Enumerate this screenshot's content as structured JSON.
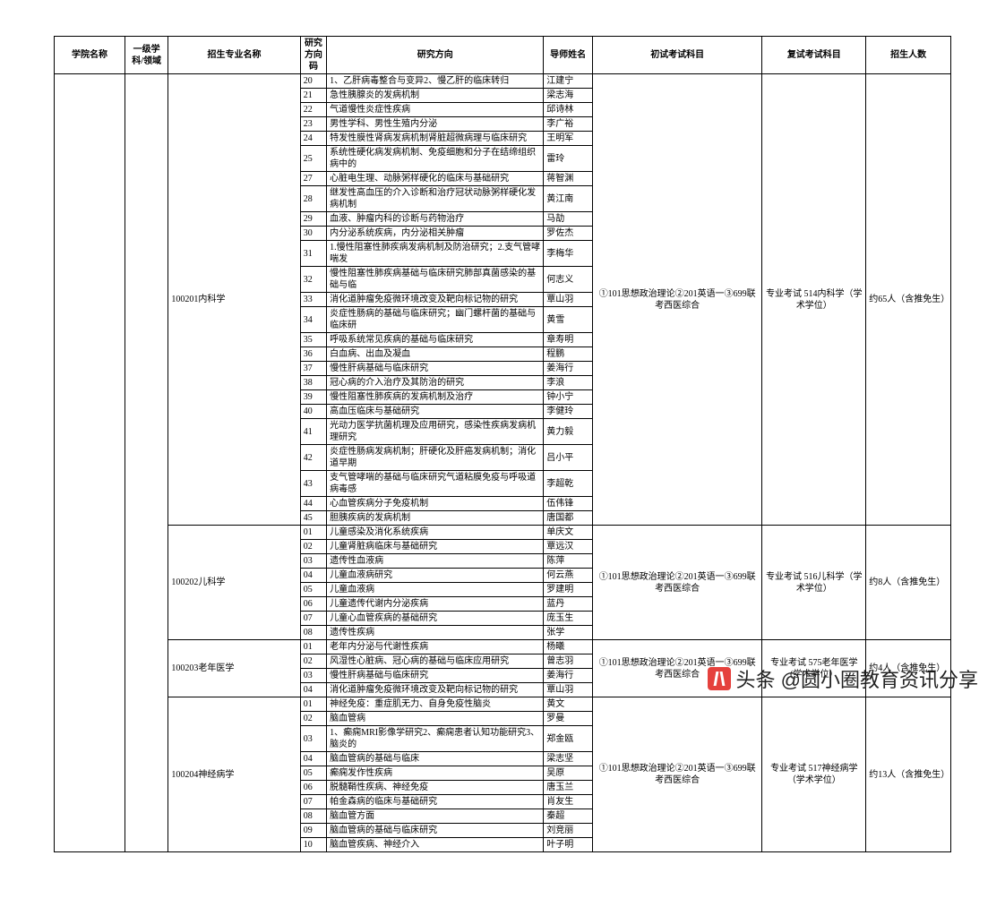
{
  "headers": {
    "college": "学院名称",
    "discipline": "一级学科/领域",
    "major": "招生专业名称",
    "code": "研究方向码",
    "direction": "研究方向",
    "tutor": "导师姓名",
    "prelim": "初试考试科目",
    "retest": "复试考试科目",
    "quota": "招生人数"
  },
  "majors": [
    {
      "name": "100201内科学",
      "prelim": "①101思想政治理论②201英语一③699联考西医综合",
      "retest": "专业考试 514内科学（学术学位）",
      "quota": "约65人（含推免生）",
      "rows": [
        {
          "code": "20",
          "direction": "1、乙肝病毒整合与变异2、慢乙肝的临床转归",
          "tutor": "江建宁"
        },
        {
          "code": "21",
          "direction": "急性胰腺炎的发病机制",
          "tutor": "梁志海"
        },
        {
          "code": "22",
          "direction": "气道慢性炎症性疾病",
          "tutor": "邱诗林"
        },
        {
          "code": "23",
          "direction": "男性学科、男性生殖内分泌",
          "tutor": "李广裕"
        },
        {
          "code": "24",
          "direction": "特发性膜性肾病发病机制肾脏超微病理与临床研究",
          "tutor": "王明军"
        },
        {
          "code": "25",
          "direction": "系统性硬化病发病机制、免疫细胞和分子在结缔组织病中的",
          "tutor": "雷玲"
        },
        {
          "code": "27",
          "direction": "心脏电生理、动脉粥样硬化的临床与基础研究",
          "tutor": "蒋智渊"
        },
        {
          "code": "28",
          "direction": "继发性高血压的介入诊断和治疗冠状动脉粥样硬化发病机制",
          "tutor": "黄江南"
        },
        {
          "code": "29",
          "direction": "血液、肿瘤内科的诊断与药物治疗",
          "tutor": "马劼"
        },
        {
          "code": "30",
          "direction": "内分泌系统疾病，内分泌相关肿瘤",
          "tutor": "罗佐杰"
        },
        {
          "code": "31",
          "direction": "1.慢性阻塞性肺疾病发病机制及防治研究；2.支气管哮喘发",
          "tutor": "李梅华"
        },
        {
          "code": "32",
          "direction": "慢性阻塞性肺疾病基础与临床研究肺部真菌感染的基础与临",
          "tutor": "何志义"
        },
        {
          "code": "33",
          "direction": "消化道肿瘤免疫微环境改变及靶向标记物的研究",
          "tutor": "覃山羽"
        },
        {
          "code": "34",
          "direction": "炎症性肠病的基础与临床研究；幽门螺杆菌的基础与临床研",
          "tutor": "黄雪"
        },
        {
          "code": "35",
          "direction": "呼吸系统常见疾病的基础与临床研究",
          "tutor": "章寿明"
        },
        {
          "code": "36",
          "direction": "白血病、出血及凝血",
          "tutor": "程鹏"
        },
        {
          "code": "37",
          "direction": "慢性肝病基础与临床研究",
          "tutor": "姜海行"
        },
        {
          "code": "38",
          "direction": "冠心病的介入治疗及其防治的研究",
          "tutor": "李浪"
        },
        {
          "code": "39",
          "direction": "慢性阻塞性肺疾病的发病机制及治疗",
          "tutor": "钟小宁"
        },
        {
          "code": "40",
          "direction": "高血压临床与基础研究",
          "tutor": "李健玲"
        },
        {
          "code": "41",
          "direction": "光动力医学抗菌机理及应用研究，感染性疾病发病机理研究",
          "tutor": "黄力毅"
        },
        {
          "code": "42",
          "direction": "炎症性肠病发病机制；肝硬化及肝癌发病机制；消化道早期",
          "tutor": "吕小平"
        },
        {
          "code": "43",
          "direction": "支气管哮喘的基础与临床研究气道粘膜免疫与呼吸道病毒感",
          "tutor": "李超乾"
        },
        {
          "code": "44",
          "direction": "心血管疾病分子免疫机制",
          "tutor": "伍伟锋"
        },
        {
          "code": "45",
          "direction": "胆胰疾病的发病机制",
          "tutor": "唐国都"
        }
      ]
    },
    {
      "name": "100202儿科学",
      "prelim": "①101思想政治理论②201英语一③699联考西医综合",
      "retest": "专业考试 516儿科学（学术学位）",
      "quota": "约8人（含推免生）",
      "rows": [
        {
          "code": "01",
          "direction": "儿童感染及消化系统疾病",
          "tutor": "单庆文"
        },
        {
          "code": "02",
          "direction": "儿童肾脏病临床与基础研究",
          "tutor": "覃远汉"
        },
        {
          "code": "03",
          "direction": "遗传性血液病",
          "tutor": "陈萍"
        },
        {
          "code": "04",
          "direction": "儿童血液病研究",
          "tutor": "何云燕"
        },
        {
          "code": "05",
          "direction": "儿童血液病",
          "tutor": "罗建明"
        },
        {
          "code": "06",
          "direction": "儿童遗传代谢内分泌疾病",
          "tutor": "蓝丹"
        },
        {
          "code": "07",
          "direction": "儿童心血管疾病的基础研究",
          "tutor": "庞玉生"
        },
        {
          "code": "08",
          "direction": "遗传性疾病",
          "tutor": "张学"
        }
      ]
    },
    {
      "name": "100203老年医学",
      "prelim": "①101思想政治理论②201英语一③699联考西医综合",
      "retest": "专业考试 575老年医学(学术学位）",
      "quota": "约4人（含推免生）",
      "rows": [
        {
          "code": "01",
          "direction": "老年内分泌与代谢性疾病",
          "tutor": "杨曦"
        },
        {
          "code": "02",
          "direction": "风湿性心脏病、冠心病的基础与临床应用研究",
          "tutor": "曾志羽"
        },
        {
          "code": "03",
          "direction": "慢性肝病基础与临床研究",
          "tutor": "姜海行"
        },
        {
          "code": "04",
          "direction": "消化道肿瘤免疫微环境改变及靶向标记物的研究",
          "tutor": "覃山羽"
        }
      ]
    },
    {
      "name": "100204神经病学",
      "prelim": "①101思想政治理论②201英语一③699联考西医综合",
      "retest": "专业考试 517神经病学（学术学位）",
      "quota": "约13人（含推免生）",
      "rows": [
        {
          "code": "01",
          "direction": "神经免疫：重症肌无力、自身免疫性脑炎",
          "tutor": "黄文"
        },
        {
          "code": "02",
          "direction": "脑血管病",
          "tutor": "罗曼"
        },
        {
          "code": "03",
          "direction": "1、癫痫MRI影像学研究2、癫痫患者认知功能研究3、脑炎的",
          "tutor": "郑金瓯"
        },
        {
          "code": "04",
          "direction": "脑血管病的基础与临床",
          "tutor": "梁志坚"
        },
        {
          "code": "05",
          "direction": "癫痫发作性疾病",
          "tutor": "吴原"
        },
        {
          "code": "06",
          "direction": "脱髓鞘性疾病、神经免疫",
          "tutor": "唐玉兰"
        },
        {
          "code": "07",
          "direction": "帕金森病的临床与基础研究",
          "tutor": "肖友生"
        },
        {
          "code": "08",
          "direction": "脑血管方面",
          "tutor": "秦超"
        },
        {
          "code": "09",
          "direction": "脑血管病的基础与临床研究",
          "tutor": "刘竞丽"
        },
        {
          "code": "10",
          "direction": "脑血管疾病、神经介入",
          "tutor": "叶子明"
        }
      ]
    }
  ],
  "watermark": "头条 @圆小圈教育资讯分享"
}
